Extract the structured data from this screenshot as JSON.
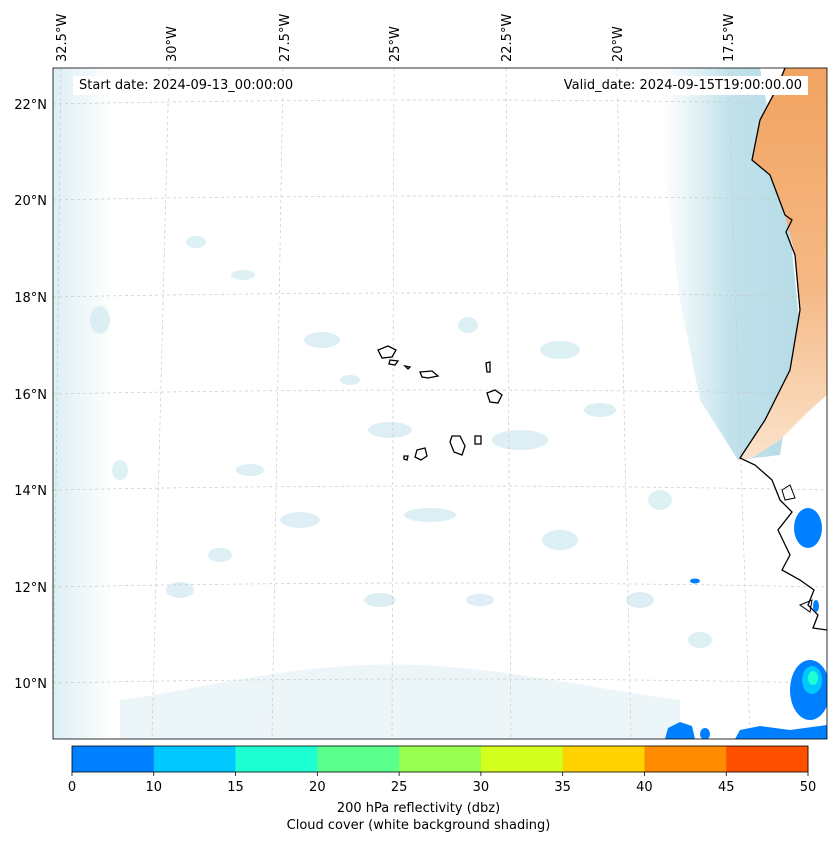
{
  "map": {
    "start_date": "Start date: 2024-09-13_00:00:00",
    "valid_date": "Valid_date: 2024-09-15T19:00:00.00",
    "lon_labels": [
      "32.5°W",
      "30°W",
      "27.5°W",
      "25°W",
      "22.5°W",
      "20°W",
      "17.5°W"
    ],
    "lat_labels": [
      "22°N",
      "20°N",
      "18°N",
      "16°N",
      "14°N",
      "12°N",
      "10°N"
    ],
    "colors": {
      "ocean": "#ffffff",
      "cloud_cover": "#b9dfe8",
      "land_shading": "#f2a461",
      "coastline": "#000000",
      "gridline": "#c8c8c8"
    }
  },
  "colorbar": {
    "ticks": [
      "0",
      "10",
      "15",
      "20",
      "25",
      "30",
      "35",
      "40",
      "45",
      "50"
    ],
    "colors": [
      "#0080ff",
      "#00c8ff",
      "#1effd2",
      "#5aff8c",
      "#96ff50",
      "#d2ff1e",
      "#ffd200",
      "#ff8c00",
      "#ff5000"
    ],
    "label_line1": "200 hPa reflectivity (dbz)",
    "label_line2": "Cloud cover (white background shading)"
  }
}
